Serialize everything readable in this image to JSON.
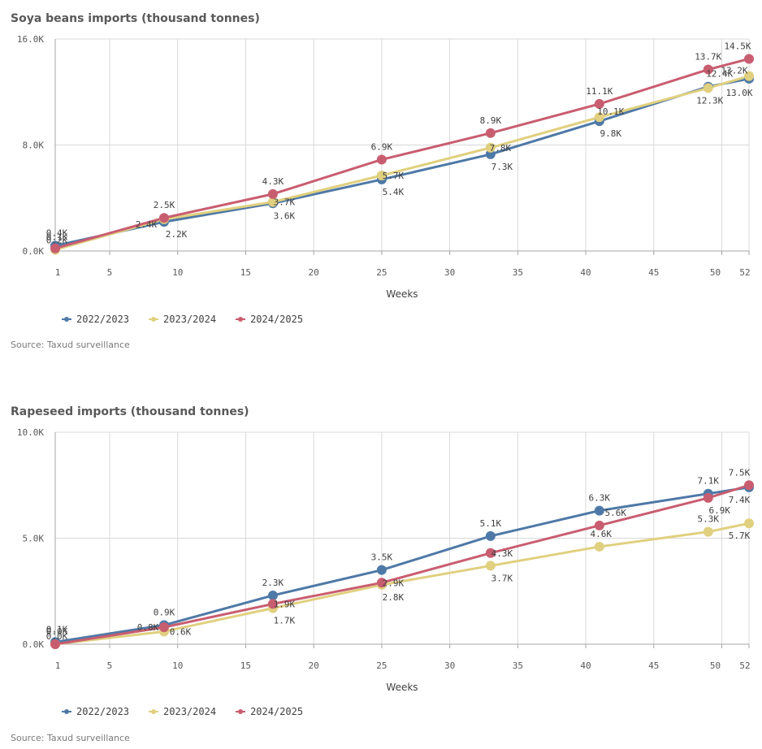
{
  "colors": {
    "s2022": "#4e79a7",
    "s2023": "#e0d07f",
    "s2024": "#c95d70",
    "grid": "#d9d9d9",
    "axis": "#a6a6a6"
  },
  "chart_data": [
    {
      "type": "line",
      "title": "Soya beans imports (thousand tonnes)",
      "xlabel": "Weeks",
      "ylabel": "",
      "source": "Source: Taxud surveillance",
      "xlim": [
        1,
        52
      ],
      "ylim": [
        0,
        16000
      ],
      "x_ticks": [
        1,
        5,
        10,
        15,
        20,
        25,
        30,
        35,
        40,
        45,
        50,
        52
      ],
      "y_ticks": [
        0,
        8000,
        16000
      ],
      "y_tick_labels": [
        "0.0K",
        "8.0K",
        "16.0K"
      ],
      "grid": true,
      "legend_position": "bottom-left",
      "x": [
        1,
        9,
        17,
        25,
        33,
        41,
        49,
        52
      ],
      "series": [
        {
          "name": "2022/2023",
          "values": [
            400,
            2200,
            3600,
            5400,
            7300,
            9800,
            12400,
            13000
          ],
          "labels": [
            "0.4K",
            "2.2K",
            "3.6K",
            "5.4K",
            "7.3K",
            "9.8K",
            "12.4K",
            "13.0K"
          ]
        },
        {
          "name": "2023/2024",
          "values": [
            100,
            2400,
            3700,
            5700,
            7800,
            10100,
            12300,
            13200
          ],
          "labels": [
            "0.1K",
            "2.4K",
            "3.7K",
            "5.7K",
            "7.8K",
            "10.1K",
            "12.3K",
            "13.2K"
          ]
        },
        {
          "name": "2024/2025",
          "values": [
            200,
            2500,
            4300,
            6900,
            8900,
            11100,
            13700,
            14500
          ],
          "labels": [
            "0.2K",
            "2.5K",
            "4.3K",
            "6.9K",
            "8.9K",
            "11.1K",
            "13.7K",
            "14.5K"
          ]
        }
      ]
    },
    {
      "type": "line",
      "title": "Rapeseed imports (thousand tonnes)",
      "xlabel": "Weeks",
      "ylabel": "",
      "source": "Source: Taxud surveillance",
      "xlim": [
        1,
        52
      ],
      "ylim": [
        0,
        10000
      ],
      "x_ticks": [
        1,
        5,
        10,
        15,
        20,
        25,
        30,
        35,
        40,
        45,
        50,
        52
      ],
      "y_ticks": [
        0,
        5000,
        10000
      ],
      "y_tick_labels": [
        "0.0K",
        "5.0K",
        "10.0K"
      ],
      "grid": true,
      "legend_position": "bottom-left",
      "x": [
        1,
        9,
        17,
        25,
        33,
        41,
        49,
        52
      ],
      "series": [
        {
          "name": "2022/2023",
          "values": [
            100,
            900,
            2300,
            3500,
            5100,
            6300,
            7100,
            7400
          ],
          "labels": [
            "0.1K",
            "0.9K",
            "2.3K",
            "3.5K",
            "5.1K",
            "6.3K",
            "7.1K",
            "7.4K"
          ]
        },
        {
          "name": "2023/2024",
          "values": [
            0,
            600,
            1700,
            2800,
            3700,
            4600,
            5300,
            5700
          ],
          "labels": [
            "0.0K",
            "0.6K",
            "1.7K",
            "2.8K",
            "3.7K",
            "4.6K",
            "5.3K",
            "5.7K"
          ]
        },
        {
          "name": "2024/2025",
          "values": [
            0,
            800,
            1900,
            2900,
            4300,
            5600,
            6900,
            7500
          ],
          "labels": [
            "0.0K",
            "0.8K",
            "1.9K",
            "2.9K",
            "4.3K",
            "5.6K",
            "6.9K",
            "7.5K"
          ]
        }
      ]
    }
  ]
}
